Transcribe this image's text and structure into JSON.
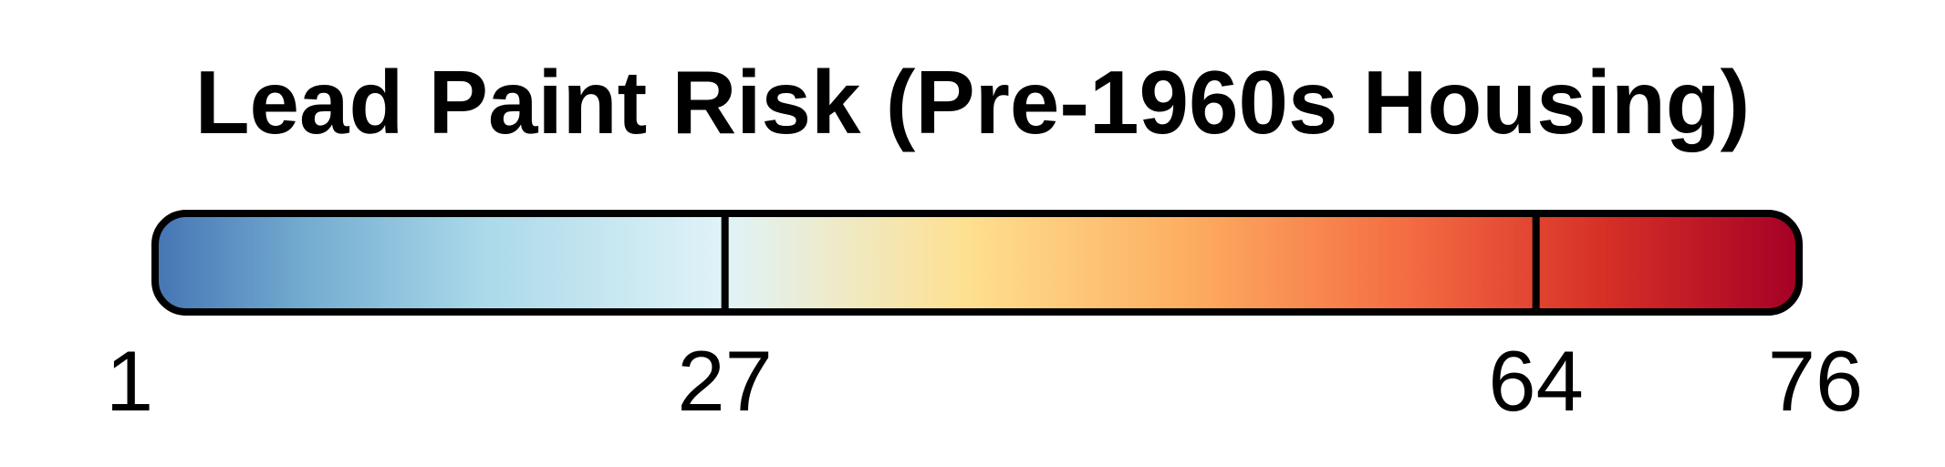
{
  "chart_data": {
    "type": "colorbar",
    "title": "Lead Paint Risk (Pre-1960s Housing)",
    "range": [
      1,
      76
    ],
    "breaks": [
      1,
      27,
      64,
      76
    ],
    "tick_labels": [
      "1",
      "27",
      "64",
      "76"
    ],
    "color_scale": [
      {
        "value": 1,
        "color": "#4575b4"
      },
      {
        "value": 8,
        "color": "#74add1"
      },
      {
        "value": 16,
        "color": "#abd9e9"
      },
      {
        "value": 27,
        "color": "#e0f3f8"
      },
      {
        "value": 38,
        "color": "#fee090"
      },
      {
        "value": 48,
        "color": "#fdae61"
      },
      {
        "value": 58,
        "color": "#f46d43"
      },
      {
        "value": 67,
        "color": "#d73027"
      },
      {
        "value": 76,
        "color": "#a50026"
      }
    ],
    "outline_color": "#000000"
  }
}
